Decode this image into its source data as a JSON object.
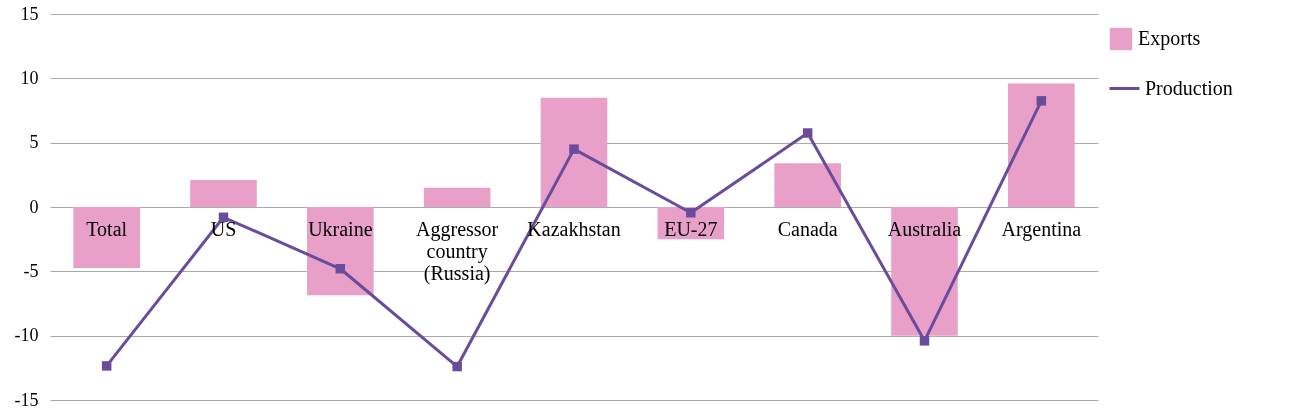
{
  "chart_data": {
    "type": "bar",
    "categories": [
      "Total",
      "US",
      "Ukraine",
      "Aggressor country (Russia)",
      "Kazakhstan",
      "EU-27",
      "Canada",
      "Australia",
      "Argentina"
    ],
    "series": [
      {
        "name": "Exports",
        "color": "#e8a0c8",
        "values": [
          -4.75,
          2.1,
          -6.85,
          1.5,
          8.5,
          -2.5,
          3.4,
          -10,
          9.6
        ]
      },
      {
        "name": "Production",
        "type": "line",
        "color": "#6a4c9c",
        "marker": "square",
        "values": [
          -12.35,
          -0.8,
          -4.8,
          -12.4,
          4.5,
          -0.45,
          5.75,
          -10.4,
          8.25
        ]
      }
    ],
    "ylim": [
      -15,
      15
    ],
    "yticks": [
      -15,
      -10,
      -5,
      0,
      5,
      10,
      15
    ],
    "grid": "y",
    "legend": "top right"
  }
}
